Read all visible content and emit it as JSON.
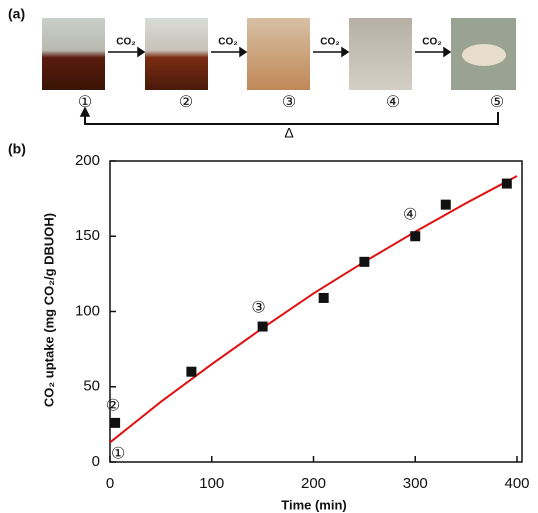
{
  "panel_a": {
    "label": "(a)",
    "arrow_labels": [
      "CO₂",
      "CO₂",
      "CO₂",
      "CO₂"
    ],
    "stages": [
      "①",
      "②",
      "③",
      "④",
      "⑤"
    ],
    "heat_label": "Δ"
  },
  "chart_data": {
    "type": "scatter",
    "panel_label": "(b)",
    "x_label": "Time (min)",
    "y_label": "CO₂ uptake (mg CO₂/g DBUOH)",
    "x": [
      5,
      80,
      150,
      210,
      250,
      300,
      330,
      390
    ],
    "values": [
      26,
      60,
      90,
      109,
      133,
      150,
      171,
      185
    ],
    "color": "#111111",
    "marker": "square",
    "fit": {
      "x": [
        0,
        50,
        100,
        150,
        200,
        250,
        300,
        350,
        400
      ],
      "values": [
        13,
        40,
        65,
        89,
        112,
        133,
        153,
        172,
        190
      ],
      "color": "#e01010"
    },
    "annotations": [
      {
        "text": "②",
        "x": 3,
        "y": 37
      },
      {
        "text": "①",
        "x": 8,
        "y": 5
      },
      {
        "text": "③",
        "x": 146,
        "y": 102
      },
      {
        "text": "④",
        "x": 295,
        "y": 164
      }
    ],
    "xlim": [
      0,
      400
    ],
    "ylim": [
      0,
      200
    ],
    "xticks": [
      0,
      100,
      200,
      300,
      400
    ],
    "yticks": [
      0,
      50,
      100,
      150,
      200
    ]
  }
}
